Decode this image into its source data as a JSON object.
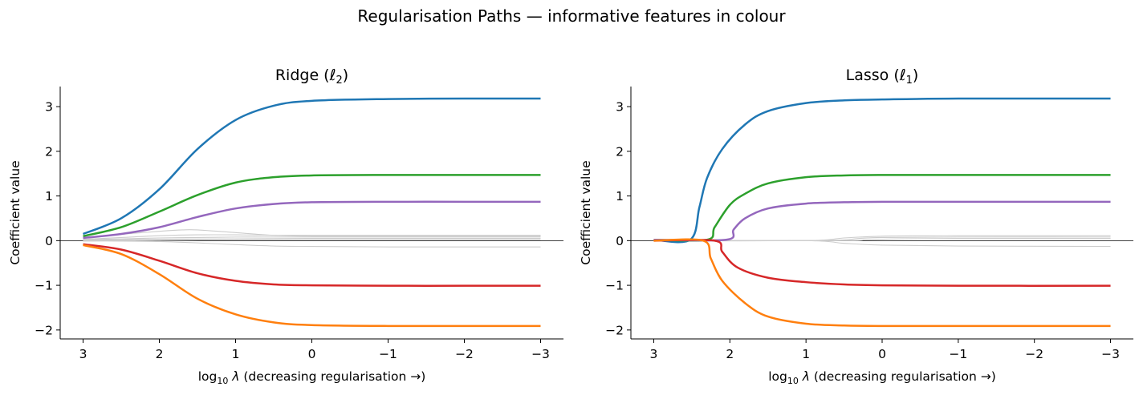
{
  "suptitle": "Regularisation Paths — informative features in colour",
  "chart_data": [
    {
      "type": "line",
      "title_main": "Ridge (",
      "title_sym": "ℓ",
      "title_sub": "2",
      "title_end": ")",
      "xlabel": {
        "log": "log",
        "base": "10",
        "sym": "λ",
        "rest": " (decreasing regularisation →)"
      },
      "ylabel": "Coefficient value",
      "xlim": [
        3.3,
        -3.3
      ],
      "ylim": [
        -2.2,
        3.45
      ],
      "xticks": [
        3,
        2,
        1,
        0,
        -1,
        -2,
        -3
      ],
      "xtick_labels": [
        "3",
        "2",
        "1",
        "0",
        "−1",
        "−2",
        "−3"
      ],
      "yticks": [
        3,
        2,
        1,
        0,
        -1,
        -2
      ],
      "ytick_labels": [
        "3",
        "2",
        "1",
        "0",
        "−1",
        "−2"
      ],
      "zero_line": true,
      "series": [
        {
          "color": "#1f77b4",
          "x": [
            3,
            2.5,
            2,
            1.5,
            1,
            0.5,
            0,
            -1,
            -2,
            -3
          ],
          "y": [
            0.15,
            0.5,
            1.15,
            2.05,
            2.7,
            3.02,
            3.13,
            3.17,
            3.18,
            3.18
          ]
        },
        {
          "color": "#2ca02c",
          "x": [
            3,
            2.5,
            2,
            1.5,
            1,
            0.5,
            0,
            -1,
            -2,
            -3
          ],
          "y": [
            0.1,
            0.3,
            0.65,
            1.02,
            1.3,
            1.42,
            1.46,
            1.47,
            1.47,
            1.47
          ]
        },
        {
          "color": "#9467bd",
          "x": [
            3,
            2.5,
            2,
            1.5,
            1,
            0.5,
            0,
            -1,
            -2,
            -3
          ],
          "y": [
            0.06,
            0.15,
            0.3,
            0.53,
            0.72,
            0.82,
            0.86,
            0.87,
            0.87,
            0.87
          ]
        },
        {
          "color": "#d62728",
          "x": [
            3,
            2.5,
            2,
            1.5,
            1,
            0.5,
            0,
            -1,
            -2,
            -3
          ],
          "y": [
            -0.08,
            -0.2,
            -0.45,
            -0.73,
            -0.9,
            -0.98,
            -1.0,
            -1.01,
            -1.01,
            -1.01
          ]
        },
        {
          "color": "#ff7f0e",
          "x": [
            3,
            2.5,
            2,
            1.5,
            1,
            0.5,
            0,
            -1,
            -2,
            -3
          ],
          "y": [
            -0.1,
            -0.3,
            -0.75,
            -1.3,
            -1.65,
            -1.83,
            -1.89,
            -1.91,
            -1.91,
            -1.91
          ]
        },
        {
          "color": "#cccccc",
          "x": [
            3,
            2.5,
            2,
            1.7,
            1.5,
            1,
            0.5,
            0,
            -1,
            -3
          ],
          "y": [
            0.06,
            0.14,
            0.21,
            0.24,
            0.24,
            0.18,
            0.12,
            0.1,
            0.1,
            0.1
          ]
        },
        {
          "color": "#cccccc",
          "x": [
            3,
            2.5,
            2,
            1.5,
            1,
            0.5,
            0,
            -1,
            -3
          ],
          "y": [
            0.03,
            0.07,
            0.11,
            0.13,
            0.13,
            0.12,
            0.12,
            0.12,
            0.12
          ]
        },
        {
          "color": "#cccccc",
          "x": [
            3,
            2.5,
            2,
            1.5,
            1,
            0.5,
            0,
            -1,
            -3
          ],
          "y": [
            0.02,
            0.04,
            0.06,
            0.07,
            0.08,
            0.08,
            0.08,
            0.08,
            0.08
          ]
        },
        {
          "color": "#cccccc",
          "x": [
            3,
            2,
            1,
            0,
            -1,
            -3
          ],
          "y": [
            0.01,
            0.03,
            0.04,
            0.05,
            0.05,
            0.05
          ]
        },
        {
          "color": "#cccccc",
          "x": [
            3,
            2,
            1,
            0,
            -1,
            -3
          ],
          "y": [
            0.0,
            0.01,
            0.02,
            0.02,
            0.02,
            0.02
          ]
        },
        {
          "color": "#cccccc",
          "x": [
            3,
            2.5,
            2,
            1.5,
            1,
            0.5,
            0,
            -1,
            -3
          ],
          "y": [
            -0.01,
            -0.01,
            -0.02,
            -0.05,
            -0.09,
            -0.12,
            -0.13,
            -0.14,
            -0.14
          ]
        }
      ]
    },
    {
      "type": "line",
      "title_main": "Lasso (",
      "title_sym": "ℓ",
      "title_sub": "1",
      "title_end": ")",
      "xlabel": {
        "log": "log",
        "base": "10",
        "sym": "λ",
        "rest": " (decreasing regularisation →)"
      },
      "ylabel": "Coefficient value",
      "xlim": [
        3.3,
        -3.3
      ],
      "ylim": [
        -2.2,
        3.45
      ],
      "xticks": [
        3,
        2,
        1,
        0,
        -1,
        -2,
        -3
      ],
      "xtick_labels": [
        "3",
        "2",
        "1",
        "0",
        "−1",
        "−2",
        "−3"
      ],
      "yticks": [
        3,
        2,
        1,
        0,
        -1,
        -2
      ],
      "ytick_labels": [
        "3",
        "2",
        "1",
        "0",
        "−1",
        "−2"
      ],
      "zero_line": true,
      "series": [
        {
          "color": "#1f77b4",
          "x": [
            3,
            2.52,
            2.4,
            2.3,
            2.1,
            1.8,
            1.5,
            1,
            0.5,
            0,
            -1,
            -3
          ],
          "y": [
            0.02,
            0.02,
            0.75,
            1.4,
            2.05,
            2.6,
            2.9,
            3.08,
            3.14,
            3.16,
            3.18,
            3.18
          ]
        },
        {
          "color": "#2ca02c",
          "x": [
            3,
            2.3,
            2.2,
            2,
            1.8,
            1.5,
            1,
            0.5,
            0,
            -1,
            -3
          ],
          "y": [
            0.02,
            0.02,
            0.3,
            0.8,
            1.05,
            1.28,
            1.42,
            1.46,
            1.47,
            1.47,
            1.47
          ]
        },
        {
          "color": "#9467bd",
          "x": [
            3,
            2.05,
            1.95,
            1.8,
            1.5,
            1,
            0.5,
            0,
            -1,
            -3
          ],
          "y": [
            0.02,
            0.02,
            0.25,
            0.5,
            0.72,
            0.83,
            0.86,
            0.87,
            0.87,
            0.87
          ]
        },
        {
          "color": "#d62728",
          "x": [
            3,
            2.2,
            2.1,
            1.9,
            1.5,
            1,
            0.5,
            0,
            -1,
            -3
          ],
          "y": [
            0.0,
            0.0,
            -0.25,
            -0.6,
            -0.83,
            -0.93,
            -0.98,
            -1.0,
            -1.01,
            -1.01
          ]
        },
        {
          "color": "#ff7f0e",
          "x": [
            3,
            2.35,
            2.25,
            2.1,
            1.8,
            1.5,
            1,
            0.5,
            0,
            -1,
            -3
          ],
          "y": [
            0.0,
            0.0,
            -0.4,
            -0.9,
            -1.4,
            -1.7,
            -1.86,
            -1.9,
            -1.91,
            -1.91,
            -1.91
          ]
        },
        {
          "color": "#cccccc",
          "x": [
            3,
            1.0,
            0.5,
            0,
            -1,
            -3
          ],
          "y": [
            0.0,
            0.0,
            0.06,
            0.1,
            0.11,
            0.11
          ]
        },
        {
          "color": "#cccccc",
          "x": [
            3,
            0.8,
            0.3,
            0,
            -1,
            -3
          ],
          "y": [
            0.0,
            0.0,
            0.05,
            0.07,
            0.08,
            0.08
          ]
        },
        {
          "color": "#cccccc",
          "x": [
            3,
            0.6,
            0.2,
            -0.2,
            -1,
            -3
          ],
          "y": [
            0.0,
            0.0,
            0.02,
            0.04,
            0.05,
            0.05
          ]
        },
        {
          "color": "#cccccc",
          "x": [
            3,
            1.0,
            0.5,
            0,
            -1,
            -3
          ],
          "y": [
            0.0,
            0.0,
            -0.06,
            -0.1,
            -0.12,
            -0.13
          ]
        }
      ]
    }
  ]
}
